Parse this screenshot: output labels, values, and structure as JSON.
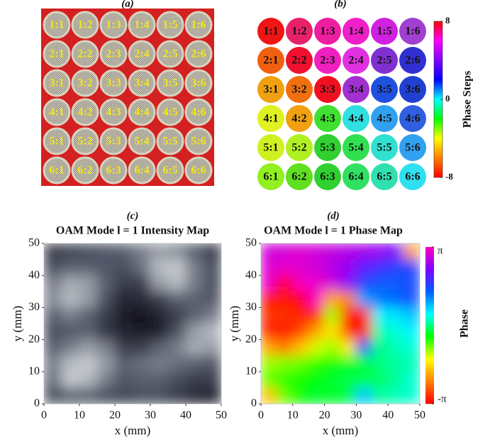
{
  "panel_a": {
    "panel_label": "(a)",
    "labels": [
      [
        "1:1",
        "1:2",
        "1:3",
        "1:4",
        "1:5",
        "1:6"
      ],
      [
        "2:1",
        "2:2",
        "2:3",
        "2:4",
        "2:5",
        "2:6"
      ],
      [
        "3:1",
        "3:2",
        "3:3",
        "3:4",
        "3:5",
        "3:6"
      ],
      [
        "4:1",
        "4:2",
        "4:3",
        "4:4",
        "4:5",
        "4:6"
      ],
      [
        "5:1",
        "5:2",
        "5:3",
        "5:4",
        "5:5",
        "5:6"
      ],
      [
        "6:1",
        "6:2",
        "6:3",
        "6:4",
        "6:5",
        "6:6"
      ]
    ]
  },
  "panel_b": {
    "panel_label": "(b)",
    "labels": [
      [
        "1:1",
        "1:2",
        "1:3",
        "1:4",
        "1:5",
        "1:6"
      ],
      [
        "2:1",
        "2:2",
        "2:3",
        "2:4",
        "2:5",
        "2:6"
      ],
      [
        "3:1",
        "3:2",
        "3:3",
        "3:4",
        "3:5",
        "3:6"
      ],
      [
        "4:1",
        "4:2",
        "4:3",
        "4:4",
        "4:5",
        "4:6"
      ],
      [
        "5:1",
        "5:2",
        "5:3",
        "5:4",
        "5:5",
        "5:6"
      ],
      [
        "6:1",
        "6:2",
        "6:3",
        "6:4",
        "6:5",
        "6:6"
      ]
    ],
    "colors": [
      [
        "#f01414",
        "#e8206a",
        "#ee1ea0",
        "#f020c8",
        "#d020e0",
        "#a040d0"
      ],
      [
        "#f06010",
        "#f01030",
        "#f020c0",
        "#e030e0",
        "#8030d0",
        "#3030d0"
      ],
      [
        "#f0a010",
        "#f07010",
        "#f01020",
        "#a030d0",
        "#2050e0",
        "#2040d0"
      ],
      [
        "#e0f020",
        "#f0a010",
        "#40e030",
        "#30e0e0",
        "#30a0f0",
        "#3060e0"
      ],
      [
        "#d0f020",
        "#b0f020",
        "#30d030",
        "#30e050",
        "#30e0d0",
        "#30a0f0"
      ],
      [
        "#90f020",
        "#60e020",
        "#30d030",
        "#30e060",
        "#30e0b0",
        "#30e0f0"
      ]
    ],
    "colorbar": {
      "label": "Phase Steps",
      "lim": [
        -8,
        8
      ],
      "ticks": [
        8,
        0,
        -8
      ],
      "colorscale": [
        "#ff0000",
        "#ff8000",
        "#ffff00",
        "#00ff00",
        "#00ffff",
        "#0000ff",
        "#8000ff",
        "#ff00ff",
        "#ff0000"
      ]
    }
  },
  "chart_data": [
    {
      "type": "heatmap",
      "panel_label": "(c)",
      "title": "OAM Mode  l = 1 Intensity Map",
      "xlabel": "x (mm)",
      "ylabel": "y (mm)",
      "xlim": [
        0,
        50
      ],
      "ylim": [
        0,
        50
      ],
      "xticks": [
        0,
        10,
        20,
        30,
        40,
        50
      ],
      "yticks": [
        0,
        10,
        20,
        30,
        40,
        50
      ],
      "x": [
        2.5,
        7.5,
        12.5,
        17.5,
        22.5,
        27.5,
        32.5,
        37.5,
        42.5,
        47.5
      ],
      "y": [
        47.5,
        42.5,
        37.5,
        32.5,
        27.5,
        22.5,
        17.5,
        12.5,
        7.5,
        2.5
      ],
      "zlim": [
        0,
        1
      ],
      "colorscale": [
        "#0a0a16",
        "#5a6070",
        "#f4f8f8"
      ],
      "z": [
        [
          0.3,
          0.35,
          0.4,
          0.45,
          0.5,
          0.6,
          0.7,
          0.65,
          0.5,
          0.3
        ],
        [
          0.4,
          0.5,
          0.5,
          0.45,
          0.4,
          0.55,
          0.8,
          0.85,
          0.6,
          0.4
        ],
        [
          0.6,
          0.75,
          0.7,
          0.5,
          0.3,
          0.3,
          0.7,
          0.8,
          0.6,
          0.4
        ],
        [
          0.65,
          0.8,
          0.7,
          0.4,
          0.15,
          0.2,
          0.3,
          0.5,
          0.5,
          0.45
        ],
        [
          0.5,
          0.6,
          0.5,
          0.3,
          0.1,
          0.05,
          0.15,
          0.3,
          0.5,
          0.6
        ],
        [
          0.4,
          0.45,
          0.5,
          0.25,
          0.15,
          0.1,
          0.1,
          0.4,
          0.7,
          0.8
        ],
        [
          0.5,
          0.6,
          0.7,
          0.6,
          0.3,
          0.3,
          0.5,
          0.6,
          0.75,
          0.7
        ],
        [
          0.6,
          0.8,
          0.85,
          0.7,
          0.5,
          0.55,
          0.6,
          0.55,
          0.5,
          0.45
        ],
        [
          0.55,
          0.85,
          0.8,
          0.6,
          0.45,
          0.5,
          0.5,
          0.4,
          0.3,
          0.3
        ],
        [
          0.4,
          0.5,
          0.5,
          0.4,
          0.35,
          0.4,
          0.4,
          0.3,
          0.2,
          0.15
        ]
      ]
    },
    {
      "type": "heatmap",
      "panel_label": "(d)",
      "title": "OAM Mode  l = 1 Phase Map",
      "xlabel": "x (mm)",
      "ylabel": "y (mm)",
      "xlim": [
        0,
        50
      ],
      "ylim": [
        0,
        50
      ],
      "xticks": [
        0,
        10,
        20,
        30,
        40,
        50
      ],
      "yticks": [
        0,
        10,
        20,
        30,
        40,
        50
      ],
      "x": [
        2.5,
        7.5,
        12.5,
        17.5,
        22.5,
        27.5,
        32.5,
        37.5,
        42.5,
        47.5
      ],
      "y": [
        47.5,
        42.5,
        37.5,
        32.5,
        27.5,
        22.5,
        17.5,
        12.5,
        7.5,
        2.5
      ],
      "zlim": [
        -3.14159,
        3.14159
      ],
      "colorscale": [
        "#ff0000",
        "#ff8000",
        "#ffff00",
        "#00ff00",
        "#00ffff",
        "#0060ff",
        "#8000ff",
        "#ff00c0"
      ],
      "colorbar_label": "Phase",
      "zticks": [
        {
          "value": 3.14159,
          "label": "π"
        },
        {
          "value": -3.14159,
          "label": "-π"
        }
      ],
      "z": [
        [
          2.8,
          2.8,
          2.9,
          2.8,
          2.7,
          2.6,
          2.5,
          2.4,
          2.2,
          -2.0
        ],
        [
          2.9,
          3.0,
          2.9,
          2.8,
          2.6,
          2.4,
          2.0,
          1.8,
          1.6,
          1.6
        ],
        [
          3.0,
          -3.1,
          3.1,
          3.0,
          2.8,
          2.3,
          1.6,
          1.4,
          1.4,
          1.5
        ],
        [
          -3.0,
          -3.0,
          -3.1,
          3.1,
          -2.0,
          -2.2,
          1.0,
          1.2,
          1.3,
          1.5
        ],
        [
          -2.8,
          -2.8,
          -2.9,
          -2.9,
          -1.0,
          -3.0,
          -3.0,
          0.5,
          0.6,
          0.8
        ],
        [
          -2.9,
          -3.0,
          -2.7,
          -2.0,
          -1.5,
          -2.8,
          -3.0,
          0.2,
          0.3,
          0.5
        ],
        [
          -2.0,
          -2.3,
          -1.8,
          -1.2,
          -1.0,
          -1.5,
          1.5,
          0.0,
          0.2,
          0.3
        ],
        [
          -1.0,
          -0.9,
          -0.8,
          -0.6,
          -0.5,
          -0.3,
          -0.2,
          0.0,
          0.1,
          0.2
        ],
        [
          -0.8,
          -0.6,
          -0.5,
          -0.4,
          -0.3,
          -0.2,
          -0.2,
          -0.1,
          0.1,
          0.3
        ],
        [
          -1.8,
          -0.8,
          -0.5,
          -0.3,
          -0.3,
          -0.2,
          0.8,
          0.1,
          0.2,
          0.3
        ]
      ]
    }
  ]
}
